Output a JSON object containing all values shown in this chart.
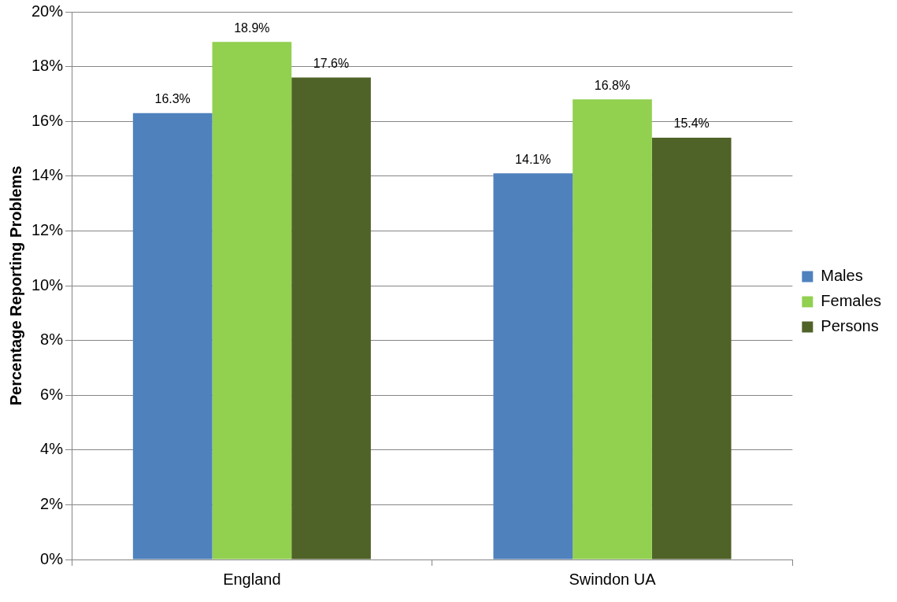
{
  "chart_data": {
    "type": "bar",
    "ylabel": "Percentage Reporting Problems",
    "categories": [
      "England",
      "Swindon UA"
    ],
    "series": [
      {
        "name": "Males",
        "color": "#4f81bd",
        "values": [
          16.3,
          14.1
        ],
        "value_labels": [
          "16.3%",
          "14.1%"
        ]
      },
      {
        "name": "Females",
        "color": "#92d050",
        "values": [
          18.9,
          16.8
        ],
        "value_labels": [
          "18.9%",
          "16.8%"
        ]
      },
      {
        "name": "Persons",
        "color": "#4f6228",
        "values": [
          17.6,
          15.4
        ],
        "value_labels": [
          "17.6%",
          "15.4%"
        ]
      }
    ],
    "ylim": [
      0,
      20
    ],
    "yticks": [
      {
        "value": 0,
        "label": "0%"
      },
      {
        "value": 2,
        "label": "2%"
      },
      {
        "value": 4,
        "label": "4%"
      },
      {
        "value": 6,
        "label": "6%"
      },
      {
        "value": 8,
        "label": "8%"
      },
      {
        "value": 10,
        "label": "10%"
      },
      {
        "value": 12,
        "label": "12%"
      },
      {
        "value": 14,
        "label": "14%"
      },
      {
        "value": 16,
        "label": "16%"
      },
      {
        "value": 18,
        "label": "18%"
      },
      {
        "value": 20,
        "label": "20%"
      }
    ],
    "grid": "y",
    "legend": "right"
  }
}
